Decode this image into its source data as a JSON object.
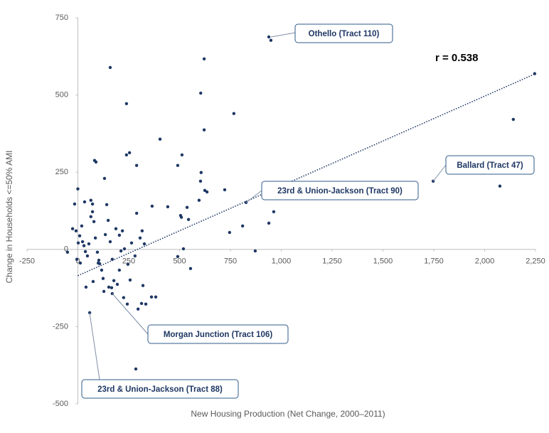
{
  "chart_data": {
    "type": "scatter",
    "xlabel": "New Housing Production (Net Change, 2000–2011)",
    "ylabel": "Change in Households <=50% AMI",
    "xlim": [
      -250,
      2250
    ],
    "ylim": [
      -500,
      750
    ],
    "xticks": [
      -250,
      0,
      250,
      500,
      750,
      {
        "value": 1000,
        "label": "1,000"
      },
      {
        "value": 1250,
        "label": "1,250"
      },
      {
        "value": 1500,
        "label": "1,500"
      },
      {
        "value": 1750,
        "label": "1,750"
      },
      {
        "value": 2000,
        "label": "2,000"
      },
      {
        "value": 2250,
        "label": "2,250"
      }
    ],
    "yticks": [
      -500,
      -250,
      0,
      250,
      500,
      750
    ],
    "color": "#1f3864",
    "trendline": {
      "x": [
        0,
        2250
      ],
      "y": [
        -85,
        569
      ]
    },
    "annotations": [
      {
        "text": "Othello (Tract 110)"
      },
      {
        "text": "r = 0.538"
      },
      {
        "text": "Ballard (Tract 47)"
      },
      {
        "text": "23rd & Union-Jackson (Tract 90)"
      },
      {
        "text": "Morgan Junction (Tract 106)"
      },
      {
        "text": "23rd & Union-Jackson (Tract 88)"
      }
    ],
    "x": [
      939,
      949,
      2246,
      2141,
      1747,
      2075,
      827,
      159,
      621,
      604,
      767,
      239,
      621,
      404,
      239,
      254,
      512,
      289,
      491,
      82,
      89,
      131,
      606,
      603,
      624,
      635,
      722,
      0,
      -16,
      33,
      64,
      72,
      963,
      939,
      810,
      746,
      872,
      596,
      537,
      509,
      505,
      544,
      365,
      442,
      289,
      519,
      554,
      491,
      58,
      285,
      169,
      383,
      362,
      320,
      313,
      296,
      334,
      243,
      225,
      -51,
      -26,
      -9,
      9,
      23,
      30,
      37,
      47,
      54,
      64,
      72,
      79,
      86,
      96,
      107,
      117,
      124,
      135,
      142,
      149,
      159,
      169,
      177,
      187,
      194,
      204,
      212,
      219,
      229,
      246,
      264,
      281,
      306,
      316,
      327,
      2,
      12,
      40,
      75,
      100,
      128,
      152,
      166,
      204,
      257,
      -5,
      19,
      103
    ],
    "y": [
      688,
      677,
      569,
      421,
      221,
      205,
      152,
      589,
      617,
      506,
      440,
      472,
      387,
      357,
      306,
      313,
      306,
      272,
      272,
      288,
      283,
      230,
      249,
      221,
      191,
      186,
      193,
      196,
      147,
      154,
      159,
      147,
      122,
      85,
      76,
      55,
      -5,
      159,
      136,
      104,
      110,
      97,
      140,
      138,
      117,
      2,
      -62,
      -23,
      -205,
      -387,
      -143,
      -154,
      -154,
      -117,
      -175,
      -193,
      -177,
      -177,
      -156,
      -9,
      67,
      60,
      44,
      25,
      12,
      -7,
      -21,
      18,
      106,
      122,
      90,
      37,
      -9,
      -46,
      -67,
      -94,
      48,
      145,
      94,
      25,
      -32,
      -101,
      67,
      -113,
      46,
      -5,
      60,
      2,
      -48,
      21,
      -21,
      37,
      60,
      18,
      21,
      -44,
      -122,
      -104,
      -44,
      -136,
      -122,
      -124,
      -67,
      -99,
      -32,
      76,
      -35
    ]
  }
}
